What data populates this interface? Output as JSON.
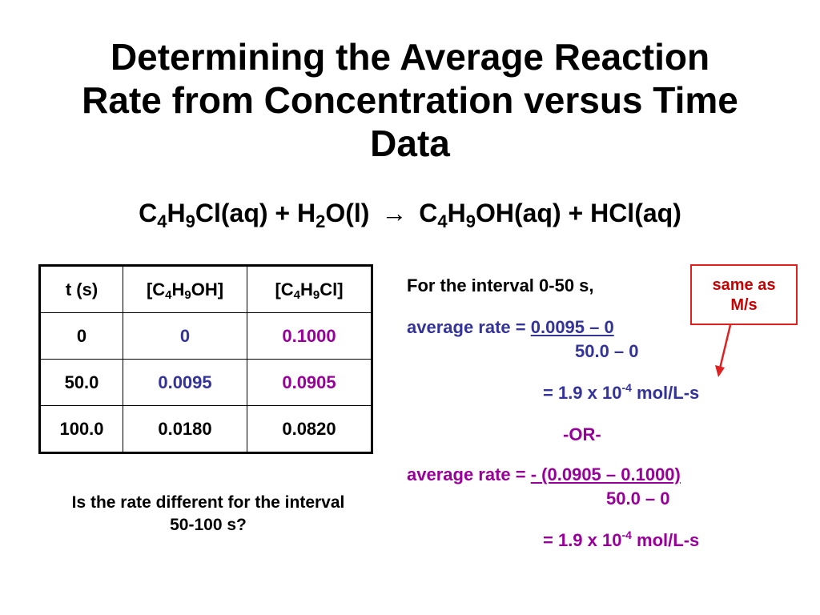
{
  "title": {
    "line1": "Determining the Average Reaction",
    "line2": "Rate from Concentration versus Time",
    "line3": "Data"
  },
  "equation": {
    "r1_a": "C",
    "r1_s1": "4",
    "r1_b": "H",
    "r1_s2": "9",
    "r1_c": "Cl(aq) + H",
    "r1_s3": "2",
    "r1_d": "O(l)",
    "arrow": "→",
    "p1_a": "C",
    "p1_s1": "4",
    "p1_b": "H",
    "p1_s2": "9",
    "p1_c": "OH(aq) + HCl(aq)"
  },
  "table": {
    "headers": {
      "col1": "t (s)",
      "col2_a": "[C",
      "col2_s1": "4",
      "col2_b": "H",
      "col2_s2": "9",
      "col2_c": "OH]",
      "col3_a": "[C",
      "col3_s1": "4",
      "col3_b": "H",
      "col3_s2": "9",
      "col3_c": "Cl]"
    },
    "rows": [
      {
        "t": "0",
        "c4h9oh": "0",
        "c4h9cl": "0.1000"
      },
      {
        "t": "50.0",
        "c4h9oh": "0.0095",
        "c4h9cl": "0.0905"
      },
      {
        "t": "100.0",
        "c4h9oh": "0.0180",
        "c4h9cl": "0.0820"
      }
    ]
  },
  "question": {
    "line1": "Is the rate different for the interval",
    "line2": "50-100 s?"
  },
  "calculation": {
    "interval": "For the interval 0-50 s,",
    "rate1_label": "average rate = ",
    "rate1_num": "0.0095 – 0",
    "rate1_den": "50.0 – 0",
    "result1_a": "= 1.9 x 10",
    "result1_exp": "-4",
    "result1_b": " mol/L-s",
    "or": "-OR-",
    "rate2_label": "average rate = ",
    "rate2_num": "- (0.0905 – 0.1000)",
    "rate2_den": "50.0 – 0",
    "result2_a": "= 1.9 x 10",
    "result2_exp": "-4",
    "result2_b": " mol/L-s"
  },
  "callout": {
    "line1": "same as",
    "line2": "M/s"
  },
  "colors": {
    "blue": "#333399",
    "purple": "#990099",
    "red": "#cc0000"
  }
}
